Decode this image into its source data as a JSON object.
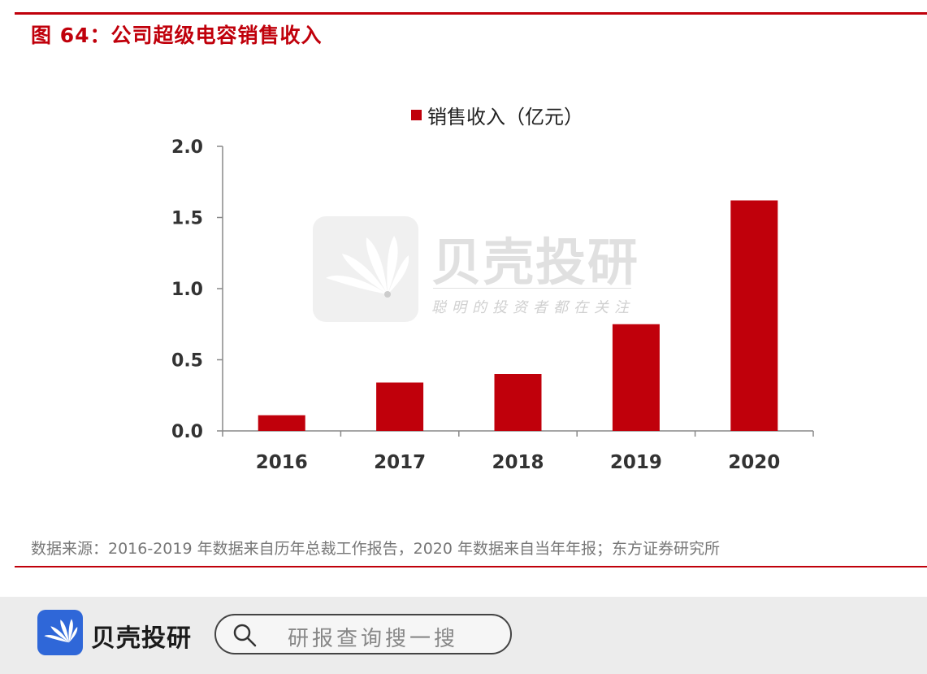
{
  "figure": {
    "title": "图 64：公司超级电容销售收入",
    "source": "数据来源：2016-2019 年数据来自历年总裁工作报告，2020 年数据来自当年年报；东方证券研究所"
  },
  "chart_data": {
    "type": "bar",
    "categories": [
      "2016",
      "2017",
      "2018",
      "2019",
      "2020"
    ],
    "series": [
      {
        "name": "销售收入（亿元）",
        "values": [
          0.11,
          0.34,
          0.4,
          0.75,
          1.62
        ],
        "color": "#c0000b"
      }
    ],
    "ylim": [
      0,
      2.0
    ],
    "yticks": [
      "0.0",
      "0.5",
      "1.0",
      "1.5",
      "2.0"
    ],
    "xlabel": "",
    "ylabel": "",
    "grid": false,
    "legend_position": "top"
  },
  "watermark": {
    "name": "贝壳投研",
    "slogan": "聪明的投资者都在关注",
    "icon": "shell-fan-icon"
  },
  "footer": {
    "brand_name": "贝壳投研",
    "logo_icon": "shell-fan-icon",
    "search_icon": "search-icon",
    "search_placeholder": "研报查询搜一搜",
    "brand_color": "#2f67d8"
  },
  "colors": {
    "accent": "#c0000b",
    "footer_bg": "#ececec"
  }
}
